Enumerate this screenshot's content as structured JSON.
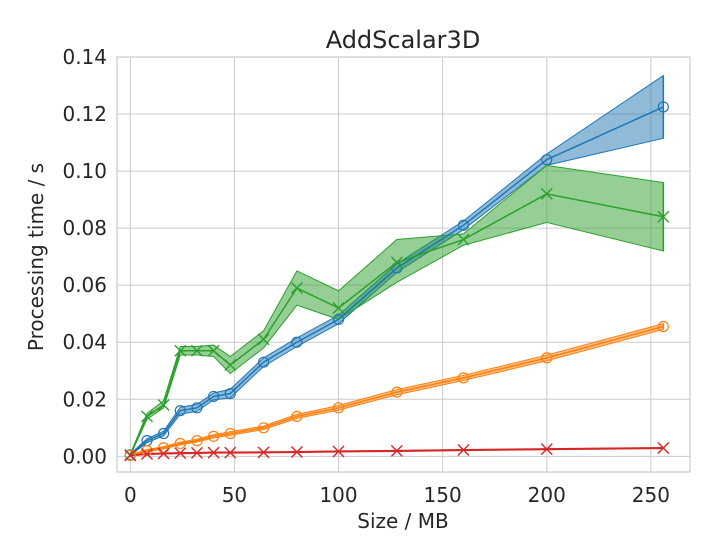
{
  "chart_data": {
    "type": "line",
    "title": "AddScalar3D",
    "xlabel": "Size / MB",
    "ylabel": "Processing time / s",
    "xlim": [
      -6.4,
      268.8
    ],
    "ylim": [
      -0.0055,
      0.14
    ],
    "xticks": [
      0,
      50,
      100,
      150,
      200,
      250
    ],
    "xtick_labels": [
      "0",
      "50",
      "100",
      "150",
      "200",
      "250"
    ],
    "yticks": [
      0.0,
      0.02,
      0.04,
      0.06,
      0.08,
      0.1,
      0.12,
      0.14
    ],
    "ytick_labels": [
      "0.00",
      "0.02",
      "0.04",
      "0.06",
      "0.08",
      "0.10",
      "0.12",
      "0.14"
    ],
    "grid": true,
    "legend": "none",
    "x": [
      0,
      8,
      16,
      24,
      32,
      40,
      48,
      64,
      80,
      100,
      128,
      160,
      200,
      256
    ],
    "series": [
      {
        "color": "#1f77b4",
        "marker": "circle",
        "values": [
          0.0005,
          0.0055,
          0.008,
          0.016,
          0.017,
          0.021,
          0.022,
          0.033,
          0.04,
          0.048,
          0.066,
          0.081,
          0.104,
          0.1225
        ],
        "lower": [
          0.0003,
          0.0048,
          0.0072,
          0.0148,
          0.0158,
          0.0198,
          0.0205,
          0.0315,
          0.0385,
          0.0465,
          0.0645,
          0.0795,
          0.102,
          0.1115
        ],
        "upper": [
          0.0008,
          0.0062,
          0.0088,
          0.0172,
          0.0182,
          0.0222,
          0.0235,
          0.0345,
          0.0415,
          0.0495,
          0.0675,
          0.0825,
          0.106,
          0.1335
        ]
      },
      {
        "color": "#ff7f0e",
        "marker": "circle",
        "values": [
          0.0003,
          0.002,
          0.003,
          0.0045,
          0.0055,
          0.007,
          0.008,
          0.01,
          0.014,
          0.017,
          0.0225,
          0.0275,
          0.0345,
          0.0455
        ],
        "lower": [
          0.0002,
          0.0016,
          0.0026,
          0.004,
          0.005,
          0.0064,
          0.0074,
          0.0094,
          0.0133,
          0.0162,
          0.0216,
          0.0266,
          0.0335,
          0.0445
        ],
        "upper": [
          0.0005,
          0.0024,
          0.0034,
          0.005,
          0.006,
          0.0076,
          0.0086,
          0.0106,
          0.0147,
          0.0178,
          0.0234,
          0.0284,
          0.0355,
          0.0465
        ]
      },
      {
        "color": "#2ca02c",
        "marker": "x",
        "values": [
          0.0005,
          0.014,
          0.018,
          0.037,
          0.037,
          0.037,
          0.032,
          0.041,
          0.059,
          0.052,
          0.068,
          0.076,
          0.092,
          0.084
        ],
        "lower": [
          0.0003,
          0.013,
          0.017,
          0.0355,
          0.0355,
          0.035,
          0.029,
          0.038,
          0.053,
          0.048,
          0.061,
          0.074,
          0.082,
          0.072
        ],
        "upper": [
          0.0008,
          0.015,
          0.0195,
          0.0385,
          0.0385,
          0.039,
          0.035,
          0.044,
          0.065,
          0.058,
          0.076,
          0.078,
          0.102,
          0.096
        ]
      },
      {
        "color": "#d62728",
        "marker": "x",
        "values": [
          0.0003,
          0.0008,
          0.001,
          0.0011,
          0.0012,
          0.0013,
          0.0013,
          0.0014,
          0.0015,
          0.0017,
          0.0019,
          0.0022,
          0.0025,
          0.0029
        ],
        "lower": [
          0.0002,
          0.0006,
          0.0008,
          0.0009,
          0.001,
          0.0011,
          0.0011,
          0.0012,
          0.0013,
          0.0015,
          0.0017,
          0.002,
          0.0023,
          0.0027
        ],
        "upper": [
          0.0004,
          0.001,
          0.0012,
          0.0013,
          0.0014,
          0.0015,
          0.0015,
          0.0016,
          0.0017,
          0.0019,
          0.0021,
          0.0024,
          0.0027,
          0.0031
        ]
      }
    ]
  }
}
